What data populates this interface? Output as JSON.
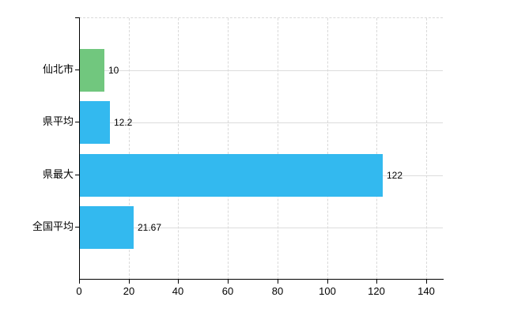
{
  "chart_data": {
    "type": "bar",
    "orientation": "horizontal",
    "title": "",
    "xlabel": "",
    "ylabel": "",
    "categories": [
      "仙北市",
      "県平均",
      "県最大",
      "全国平均"
    ],
    "values": [
      10,
      12.2,
      122,
      21.67
    ],
    "value_labels": [
      "10",
      "12.2",
      "122",
      "21.67"
    ],
    "series_colors": [
      "#71c77e",
      "#33b9ef",
      "#33b9ef",
      "#33b9ef"
    ],
    "x_ticks": [
      0,
      20,
      40,
      60,
      80,
      100,
      120,
      140
    ],
    "x_tick_labels": [
      "0",
      "20",
      "40",
      "60",
      "80",
      "100",
      "120",
      "140"
    ],
    "xlim": [
      0,
      146.7
    ],
    "grid": {
      "vertical": "dashed",
      "horizontal": "solid"
    },
    "legend": "none"
  },
  "colors": {
    "background": "#ffffff",
    "axis": "#000000",
    "grid": "#d9d9d9",
    "text": "#000000",
    "green_bar": "#71c77e",
    "blue_bar": "#33b9ef"
  }
}
